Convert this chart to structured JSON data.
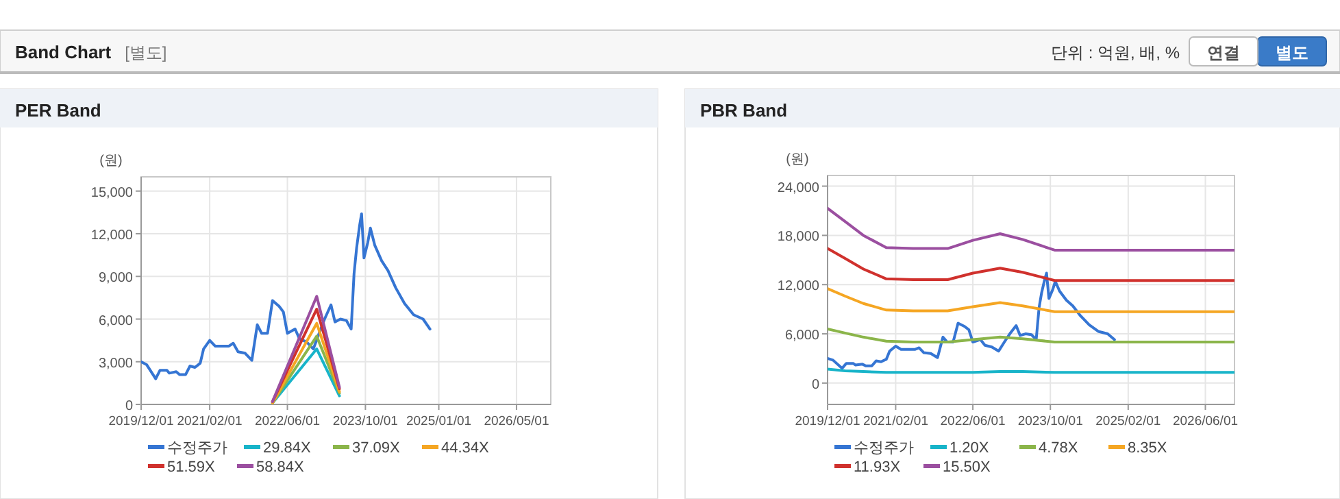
{
  "chart_data": [
    {
      "type": "other",
      "title": "Band Chart",
      "subtitle": "[별도]",
      "annotations": [
        "단위 : 억원, 배, %",
        "연결",
        "별도"
      ]
    },
    {
      "type": "line",
      "title": "PER Band",
      "ylabel": "(원)",
      "grid": true,
      "legend": "bottom",
      "marker": "none",
      "xlim": [
        "2019-12-01",
        "2026-12-01"
      ],
      "xticks": [
        {
          "value": "2019-12-01",
          "label": "2019/12/01"
        },
        {
          "value": "2021-02-01",
          "label": "2021/02/01"
        },
        {
          "value": "2022-06-01",
          "label": "2022/06/01"
        },
        {
          "value": "2023-10-01",
          "label": "2023/10/01"
        },
        {
          "value": "2025-01-01",
          "label": "2025/01/01"
        },
        {
          "value": "2026-05-01",
          "label": "2026/05/01"
        }
      ],
      "ylim": [
        0,
        16000
      ],
      "yticks": [
        0,
        {
          "value": 3000,
          "label": "3,000"
        },
        {
          "value": 6000,
          "label": "6,000"
        },
        {
          "value": 9000,
          "label": "9,000"
        },
        {
          "value": 12000,
          "label": "12,000"
        },
        {
          "value": 15000,
          "label": "15,000"
        }
      ],
      "x": [
        "2019-12-01",
        "2020-01-04",
        "2020-03-01",
        "2020-03-28",
        "2020-05-10",
        "2020-05-25",
        "2020-07-07",
        "2020-07-28",
        "2020-09-04",
        "2020-10-01",
        "2020-11-01",
        "2020-12-04",
        "2020-12-25",
        "2021-02-01",
        "2021-03-07",
        "2021-06-01",
        "2021-06-28",
        "2021-07-28",
        "2021-09-10",
        "2021-10-22",
        "2021-11-25",
        "2021-12-22",
        "2022-01-28",
        "2022-02-28",
        "2022-04-10",
        "2022-05-07",
        "2022-06-01",
        "2022-07-19",
        "2022-08-16",
        "2022-09-28",
        "2022-11-10",
        "2022-12-16",
        "2023-01-19",
        "2023-02-28",
        "2023-03-25",
        "2023-04-28",
        "2023-06-04",
        "2023-07-04",
        "2023-07-22",
        "2023-08-07",
        "2023-08-26",
        "2023-09-07",
        "2023-09-22",
        "2023-10-16",
        "2023-11-01",
        "2023-11-28",
        "2024-01-10",
        "2024-02-19",
        "2024-04-07",
        "2024-06-01",
        "2024-07-28",
        "2024-09-25",
        "2024-11-07"
      ],
      "series": [
        {
          "name": "수정주가",
          "color": "#3575d3",
          "values": [
            3000,
            2800,
            1800,
            2400,
            2400,
            2200,
            2300,
            2100,
            2100,
            2700,
            2600,
            2900,
            3900,
            4500,
            4100,
            4100,
            4300,
            3700,
            3600,
            3100,
            5600,
            5000,
            5000,
            7300,
            6900,
            6500,
            5000,
            5300,
            4600,
            4400,
            3900,
            5000,
            6000,
            7000,
            5800,
            6000,
            5900,
            5300,
            9200,
            11000,
            12600,
            13400,
            10300,
            11400,
            12400,
            11200,
            10100,
            9400,
            8200,
            7100,
            6300,
            6000,
            5300
          ]
        },
        {
          "name": "29.84X",
          "color": "#18b4c9",
          "x": [
            "2022-02-28",
            "2022-12-01",
            "2023-04-22"
          ],
          "values": [
            100,
            3900,
            600
          ]
        },
        {
          "name": "37.09X",
          "color": "#8bb54a",
          "x": [
            "2022-02-28",
            "2022-12-01",
            "2023-04-22"
          ],
          "values": [
            100,
            4800,
            800
          ]
        },
        {
          "name": "44.34X",
          "color": "#f5a623",
          "x": [
            "2022-02-28",
            "2022-12-01",
            "2023-04-22"
          ],
          "values": [
            100,
            5700,
            900
          ]
        },
        {
          "name": "51.59X",
          "color": "#d0312d",
          "x": [
            "2022-02-28",
            "2022-12-01",
            "2023-04-22"
          ],
          "values": [
            200,
            6700,
            1100
          ]
        },
        {
          "name": "58.84X",
          "color": "#9b4fa0",
          "x": [
            "2022-02-28",
            "2022-12-01",
            "2023-04-22"
          ],
          "values": [
            200,
            7600,
            1200
          ]
        }
      ]
    },
    {
      "type": "line",
      "title": "PBR Band",
      "ylabel": "(원)",
      "grid": true,
      "legend": "bottom",
      "marker": "none",
      "xlim": [
        "2019-12-01",
        "2026-12-01"
      ],
      "xticks": [
        {
          "value": "2019-12-01",
          "label": "2019/12/01"
        },
        {
          "value": "2021-02-01",
          "label": "2021/02/01"
        },
        {
          "value": "2022-06-01",
          "label": "2022/06/01"
        },
        {
          "value": "2023-10-01",
          "label": "2023/10/01"
        },
        {
          "value": "2025-02-01",
          "label": "2025/02/01"
        },
        {
          "value": "2026-06-01",
          "label": "2026/06/01"
        }
      ],
      "ylim": [
        -2600,
        25300
      ],
      "yticks": [
        0,
        {
          "value": 6000,
          "label": "6,000"
        },
        {
          "value": 12000,
          "label": "12,000"
        },
        {
          "value": 18000,
          "label": "18,000"
        },
        {
          "value": 24000,
          "label": "24,000"
        }
      ],
      "x": [
        "2019-12-01",
        "2020-01-04",
        "2020-03-01",
        "2020-03-28",
        "2020-05-10",
        "2020-05-25",
        "2020-07-07",
        "2020-07-28",
        "2020-09-04",
        "2020-10-01",
        "2020-11-01",
        "2020-12-04",
        "2020-12-25",
        "2021-02-01",
        "2021-03-07",
        "2021-06-01",
        "2021-06-28",
        "2021-07-28",
        "2021-09-10",
        "2021-10-22",
        "2021-11-25",
        "2021-12-22",
        "2022-01-28",
        "2022-02-28",
        "2022-04-10",
        "2022-05-07",
        "2022-06-01",
        "2022-07-19",
        "2022-08-16",
        "2022-09-28",
        "2022-11-10",
        "2022-12-16",
        "2023-01-19",
        "2023-02-28",
        "2023-03-25",
        "2023-04-28",
        "2023-06-04",
        "2023-07-04",
        "2023-07-22",
        "2023-08-07",
        "2023-08-26",
        "2023-09-07",
        "2023-09-22",
        "2023-10-16",
        "2023-11-01",
        "2023-11-28",
        "2024-01-10",
        "2024-02-19",
        "2024-04-07",
        "2024-06-01",
        "2024-07-28",
        "2024-09-25",
        "2024-11-07"
      ],
      "series": [
        {
          "name": "수정주가",
          "color": "#3575d3",
          "values": [
            3000,
            2800,
            1800,
            2400,
            2400,
            2200,
            2300,
            2100,
            2100,
            2700,
            2600,
            2900,
            3900,
            4500,
            4100,
            4100,
            4300,
            3700,
            3600,
            3100,
            5600,
            5000,
            5000,
            7300,
            6900,
            6500,
            5000,
            5300,
            4600,
            4400,
            3900,
            5000,
            6000,
            7000,
            5800,
            6000,
            5900,
            5300,
            9200,
            11000,
            12600,
            13400,
            10300,
            11400,
            12400,
            11200,
            10100,
            9400,
            8200,
            7100,
            6300,
            6000,
            5300
          ]
        },
        {
          "name": "1.20X",
          "color": "#18b4c9",
          "x": [
            "2019-12-01",
            "2020-03-20",
            "2020-07-13",
            "2020-12-04",
            "2021-05-22",
            "2021-12-25",
            "2022-06-01",
            "2022-11-19",
            "2023-04-10",
            "2023-10-28",
            "2026-12-01"
          ],
          "values": [
            1700,
            1500,
            1400,
            1300,
            1300,
            1300,
            1300,
            1400,
            1400,
            1300,
            1300
          ]
        },
        {
          "name": "4.78X",
          "color": "#8bb54a",
          "x": [
            "2019-12-01",
            "2020-03-20",
            "2020-07-13",
            "2020-12-04",
            "2021-05-22",
            "2021-12-25",
            "2022-06-01",
            "2022-11-19",
            "2023-04-10",
            "2023-10-28",
            "2026-12-01"
          ],
          "values": [
            6600,
            6100,
            5600,
            5100,
            5000,
            5000,
            5300,
            5600,
            5400,
            5000,
            5000
          ]
        },
        {
          "name": "8.35X",
          "color": "#f5a623",
          "x": [
            "2019-12-01",
            "2020-03-20",
            "2020-07-13",
            "2020-12-04",
            "2021-05-22",
            "2021-12-25",
            "2022-06-01",
            "2022-11-19",
            "2023-04-10",
            "2023-10-28",
            "2026-12-01"
          ],
          "values": [
            11500,
            10600,
            9700,
            8900,
            8800,
            8800,
            9300,
            9800,
            9400,
            8700,
            8700
          ]
        },
        {
          "name": "11.93X",
          "color": "#d0312d",
          "x": [
            "2019-12-01",
            "2020-03-20",
            "2020-07-13",
            "2020-12-04",
            "2021-05-22",
            "2021-12-25",
            "2022-06-01",
            "2022-11-19",
            "2023-04-10",
            "2023-10-28",
            "2026-12-01"
          ],
          "values": [
            16400,
            15200,
            13900,
            12700,
            12600,
            12600,
            13400,
            14000,
            13500,
            12500,
            12500
          ]
        },
        {
          "name": "15.50X",
          "color": "#9b4fa0",
          "x": [
            "2019-12-01",
            "2020-03-20",
            "2020-07-13",
            "2020-12-04",
            "2021-05-22",
            "2021-12-25",
            "2022-06-01",
            "2022-11-19",
            "2023-04-10",
            "2023-10-28",
            "2026-12-01"
          ],
          "values": [
            21300,
            19700,
            18000,
            16500,
            16400,
            16400,
            17400,
            18200,
            17500,
            16200,
            16200
          ]
        }
      ]
    }
  ]
}
